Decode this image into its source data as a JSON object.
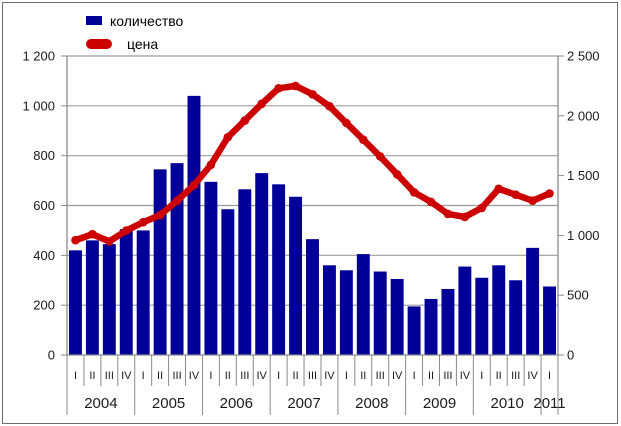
{
  "legend": {
    "quantity_label": "количество",
    "price_label": "цена"
  },
  "colors": {
    "bar": "#000099",
    "line": "#CC0000",
    "grid": "#9b9b9b",
    "axis": "#8a8a8a",
    "text": "#1a1a1a"
  },
  "chart_data": {
    "type": "bar",
    "subtype": "combo bar+line, dual axis",
    "grid": "horizontal",
    "legend_position": "top-left",
    "categories": {
      "quarters": [
        "I",
        "II",
        "III",
        "IV",
        "I",
        "II",
        "III",
        "IV",
        "I",
        "II",
        "III",
        "IV",
        "I",
        "II",
        "III",
        "IV",
        "I",
        "II",
        "III",
        "IV",
        "I",
        "II",
        "III",
        "IV",
        "I",
        "II",
        "III",
        "IV",
        "I"
      ],
      "years": [
        {
          "label": "2004",
          "quarters": 4
        },
        {
          "label": "2005",
          "quarters": 4
        },
        {
          "label": "2006",
          "quarters": 4
        },
        {
          "label": "2007",
          "quarters": 4
        },
        {
          "label": "2008",
          "quarters": 4
        },
        {
          "label": "2009",
          "quarters": 4
        },
        {
          "label": "2010",
          "quarters": 4
        },
        {
          "label": "2011",
          "quarters": 1
        }
      ]
    },
    "series": [
      {
        "name": "количество",
        "type": "bar",
        "axis": "left",
        "values": [
          420,
          460,
          445,
          505,
          500,
          745,
          770,
          1040,
          695,
          585,
          665,
          730,
          685,
          635,
          465,
          360,
          340,
          405,
          335,
          305,
          195,
          225,
          265,
          355,
          310,
          360,
          300,
          430,
          275
        ]
      },
      {
        "name": "цена",
        "type": "line",
        "axis": "right",
        "values": [
          960,
          1010,
          950,
          1040,
          1110,
          1170,
          1290,
          1420,
          1590,
          1820,
          1960,
          2100,
          2230,
          2250,
          2180,
          2080,
          1940,
          1800,
          1660,
          1510,
          1360,
          1280,
          1180,
          1155,
          1230,
          1390,
          1340,
          1290,
          1350
        ]
      }
    ],
    "left_axis": {
      "min": 0,
      "max": 1200,
      "tick_step": 200,
      "tick_values": [
        1200,
        1000,
        800,
        600,
        400,
        200,
        0
      ],
      "tick_labels": [
        "1 200",
        "1 000",
        "800",
        "600",
        "400",
        "200",
        "0"
      ]
    },
    "right_axis": {
      "min": 0,
      "max": 2500,
      "tick_step": 500,
      "tick_values": [
        2500,
        2000,
        1500,
        1000,
        500,
        0
      ],
      "tick_labels": [
        "2 500",
        "2 000",
        "1 500",
        "1 000",
        "500",
        "0"
      ]
    }
  }
}
